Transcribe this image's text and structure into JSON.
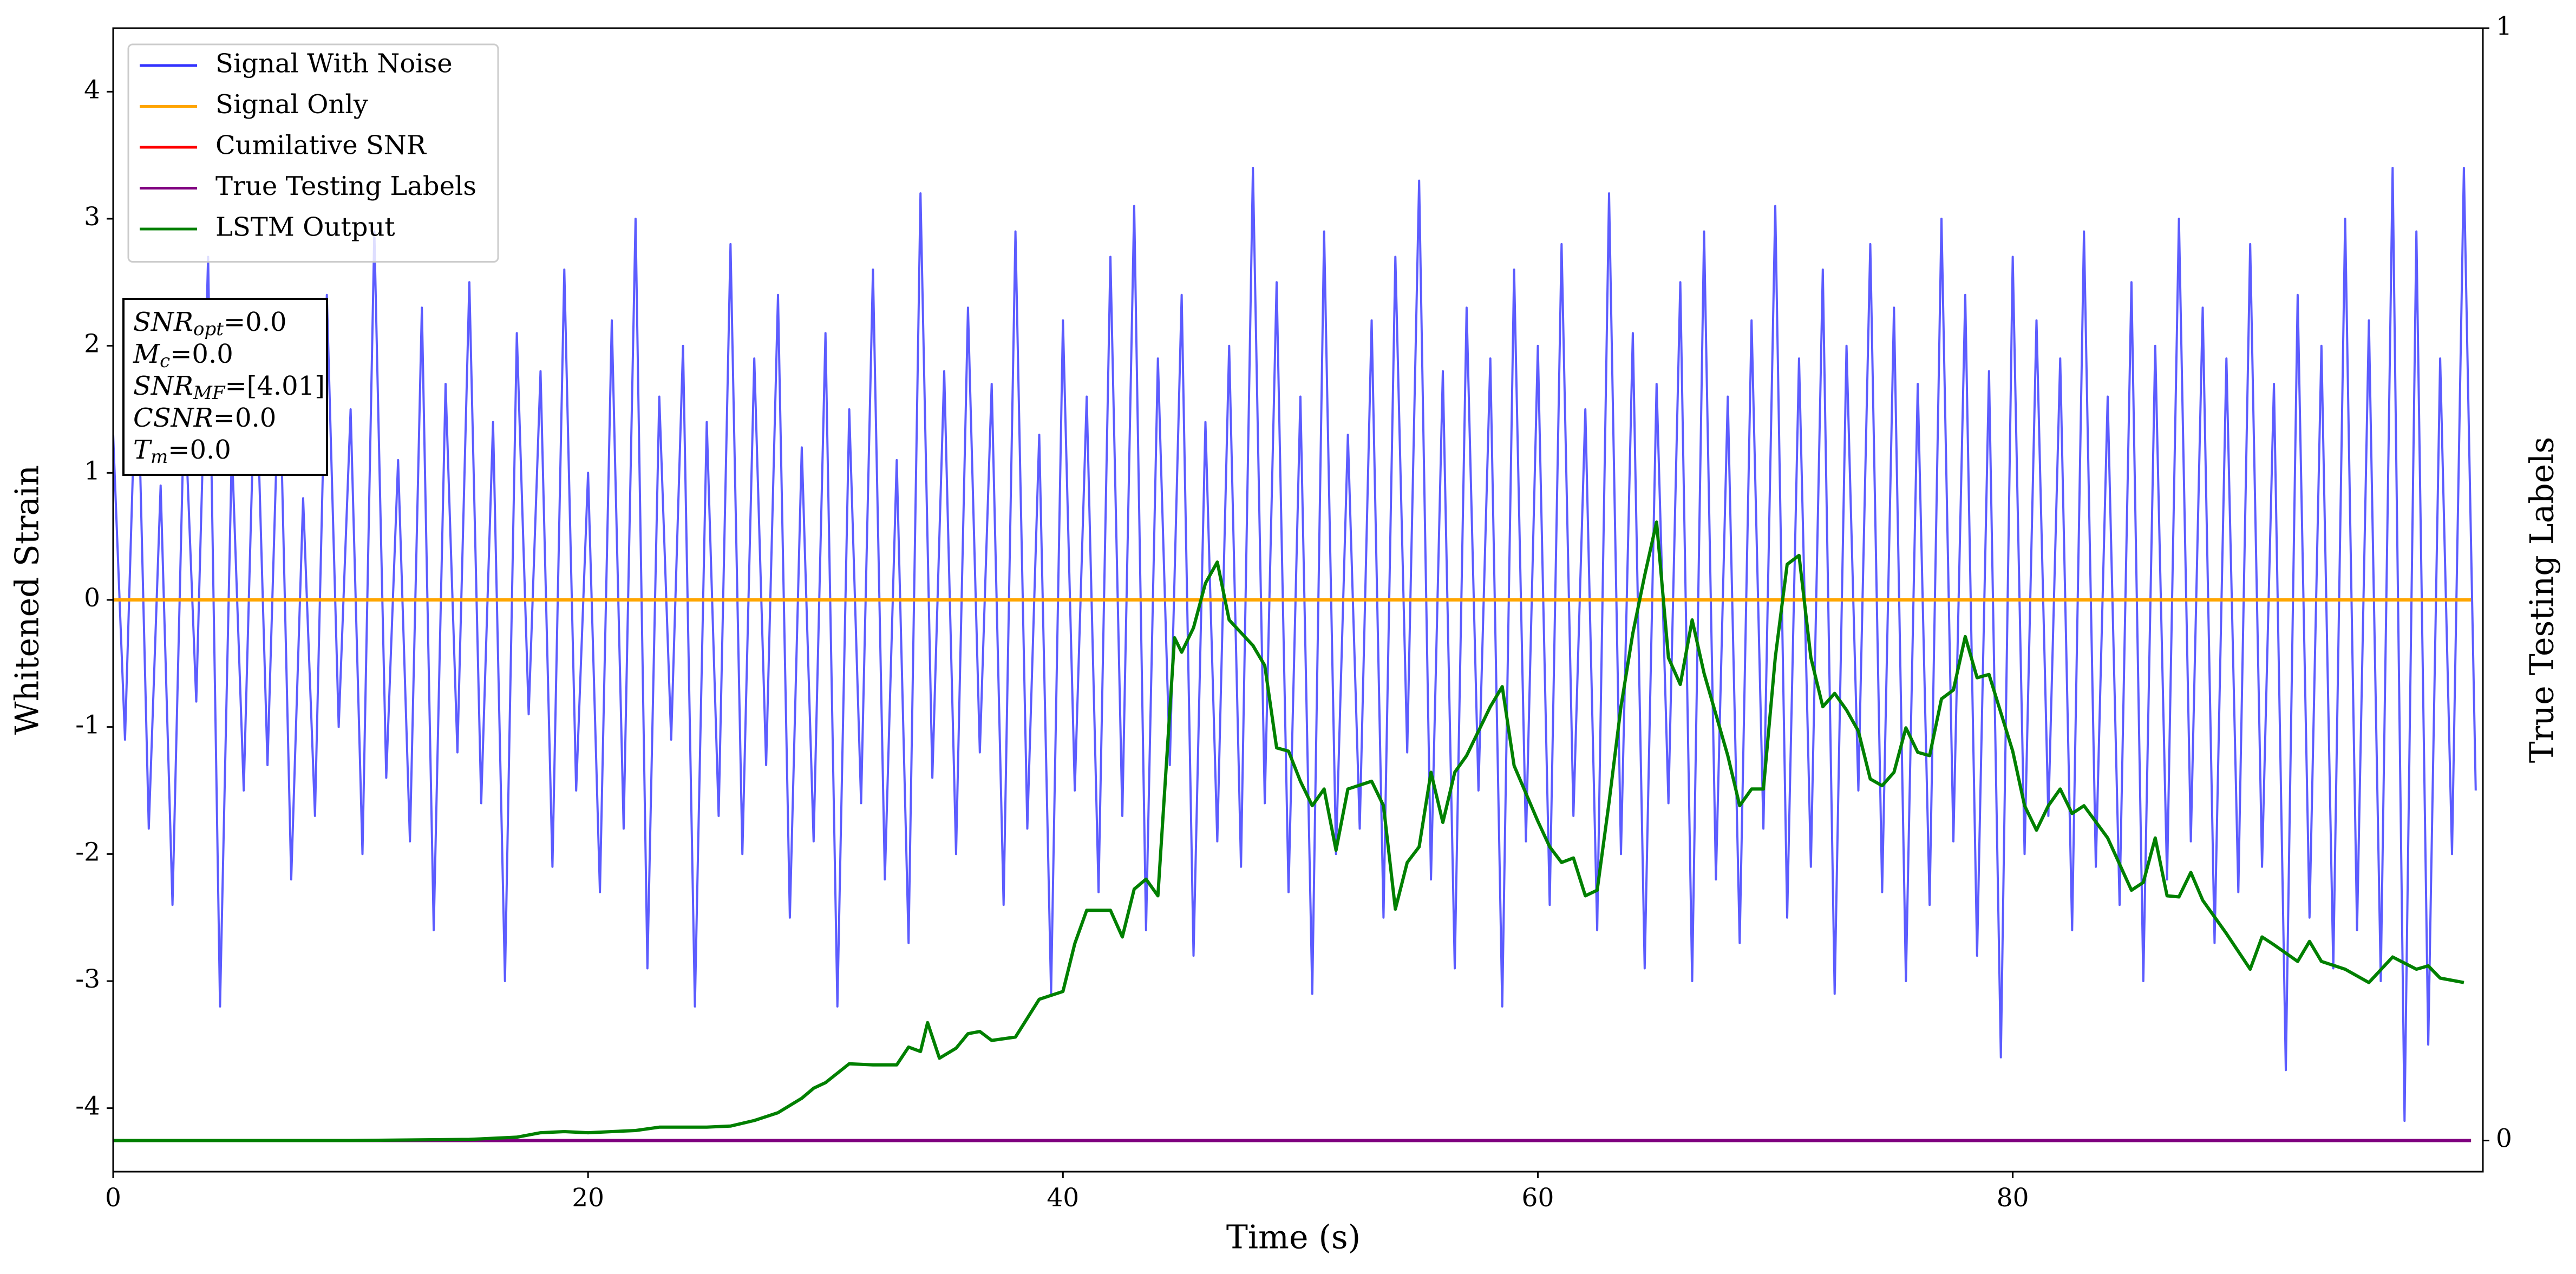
{
  "chart_data": {
    "type": "line",
    "xlabel": "Time (s)",
    "ylabel": "Whitened Strain",
    "y2label": "True Testing Labels",
    "xlim": [
      0,
      99.8
    ],
    "xticks": [
      0,
      20,
      40,
      60,
      80
    ],
    "ylim": [
      -4.5,
      4.5
    ],
    "yticks": [
      -4,
      -3,
      -2,
      -1,
      0,
      1,
      2,
      3,
      4
    ],
    "y2lim": [
      -0.028,
      1.0
    ],
    "y2ticks": [
      0,
      1
    ],
    "grid": false,
    "legend": "upper left",
    "annotations": [
      {
        "text": "SNR",
        "sub": "opt",
        "rest": "=0.0"
      },
      {
        "text": "M",
        "sub": "c",
        "rest": "=0.0"
      },
      {
        "text": "SNR",
        "sub": "MF",
        "rest": "=[4.01]"
      },
      {
        "text": "CSNR",
        "rest": "=0.0"
      },
      {
        "text": "T",
        "sub": "m",
        "rest": "=0.0"
      }
    ],
    "series": [
      {
        "name": "Signal With Noise",
        "color": "#3333ff",
        "x": [
          0,
          0.5,
          1,
          1.5,
          2,
          2.5,
          3,
          3.5,
          4,
          4.5,
          5,
          5.5,
          6,
          6.5,
          7,
          7.5,
          8,
          8.5,
          9,
          9.5,
          10,
          10.5,
          11,
          11.5,
          12,
          12.5,
          13,
          13.5,
          14,
          14.5,
          15,
          15.5,
          16,
          16.5,
          17,
          17.5,
          18,
          18.5,
          19,
          19.5,
          20,
          20.5,
          21,
          21.5,
          22,
          22.5,
          23,
          23.5,
          24,
          24.5,
          25,
          25.5,
          26,
          26.5,
          27,
          27.5,
          28,
          28.5,
          29,
          29.5,
          30,
          30.5,
          31,
          31.5,
          32,
          32.5,
          33,
          33.5,
          34,
          34.5,
          35,
          35.5,
          36,
          36.5,
          37,
          37.5,
          38,
          38.5,
          39,
          39.5,
          40,
          40.5,
          41,
          41.5,
          42,
          42.5,
          43,
          43.5,
          44,
          44.5,
          45,
          45.5,
          46,
          46.5,
          47,
          47.5,
          48,
          48.5,
          49,
          49.5,
          50,
          50.5,
          51,
          51.5,
          52,
          52.5,
          53,
          53.5,
          54,
          54.5,
          55,
          55.5,
          56,
          56.5,
          57,
          57.5,
          58,
          58.5,
          59,
          59.5,
          60,
          60.5,
          61,
          61.5,
          62,
          62.5,
          63,
          63.5,
          64,
          64.5,
          65,
          65.5,
          66,
          66.5,
          67,
          67.5,
          68,
          68.5,
          69,
          69.5,
          70,
          70.5,
          71,
          71.5,
          72,
          72.5,
          73,
          73.5,
          74,
          74.5,
          75,
          75.5,
          76,
          76.5,
          77,
          77.5,
          78,
          78.5,
          79,
          79.5,
          80,
          80.5,
          81,
          81.5,
          82,
          82.5,
          83,
          83.5,
          84,
          84.5,
          85,
          85.5,
          86,
          86.5,
          87,
          87.5,
          88,
          88.5,
          89,
          89.5,
          90,
          90.5,
          91,
          91.5,
          92,
          92.5,
          93,
          93.5,
          94,
          94.5,
          95,
          95.5,
          96,
          96.5,
          97,
          97.5,
          98,
          98.5,
          99,
          99.5
        ],
        "values": [
          1.3,
          -1.1,
          2.1,
          -1.8,
          0.9,
          -2.4,
          1.6,
          -0.8,
          2.7,
          -3.2,
          1.2,
          -1.5,
          2.0,
          -1.3,
          1.9,
          -2.2,
          0.8,
          -1.7,
          2.4,
          -1.0,
          1.5,
          -2.0,
          2.9,
          -1.4,
          1.1,
          -1.9,
          2.3,
          -2.6,
          1.7,
          -1.2,
          2.5,
          -1.6,
          1.4,
          -3.0,
          2.1,
          -0.9,
          1.8,
          -2.1,
          2.6,
          -1.5,
          1.0,
          -2.3,
          2.2,
          -1.8,
          3.0,
          -2.9,
          1.6,
          -1.1,
          2.0,
          -3.2,
          1.4,
          -1.7,
          2.8,
          -2.0,
          1.9,
          -1.3,
          2.4,
          -2.5,
          1.2,
          -1.9,
          2.1,
          -3.2,
          1.5,
          -1.6,
          2.6,
          -2.2,
          1.1,
          -2.7,
          3.2,
          -1.4,
          1.8,
          -2.0,
          2.3,
          -1.2,
          1.7,
          -2.4,
          2.9,
          -1.8,
          1.3,
          -3.1,
          2.2,
          -1.5,
          1.6,
          -2.3,
          2.7,
          -1.7,
          3.1,
          -2.6,
          1.9,
          -1.3,
          2.4,
          -2.8,
          1.4,
          -1.9,
          2.0,
          -2.1,
          3.4,
          -1.6,
          2.5,
          -2.3,
          1.6,
          -3.1,
          2.9,
          -2.0,
          1.3,
          -1.8,
          2.2,
          -2.5,
          2.7,
          -1.2,
          3.3,
          -2.2,
          1.8,
          -2.9,
          2.3,
          -1.5,
          1.9,
          -3.2,
          2.6,
          -1.9,
          2.0,
          -2.4,
          2.8,
          -1.7,
          1.5,
          -2.6,
          3.2,
          -2.0,
          2.1,
          -2.9,
          1.7,
          -1.6,
          2.5,
          -3.0,
          2.9,
          -2.2,
          1.6,
          -2.7,
          2.2,
          -1.8,
          3.1,
          -2.5,
          1.9,
          -2.1,
          2.6,
          -3.1,
          2.0,
          -1.5,
          2.8,
          -2.3,
          2.3,
          -3.0,
          1.7,
          -2.4,
          3.0,
          -1.9,
          2.4,
          -2.8,
          1.8,
          -3.6,
          2.7,
          -2.0,
          2.2,
          -1.7,
          1.9,
          -2.6,
          2.9,
          -2.1,
          1.6,
          -2.4,
          2.5,
          -3.0,
          2.0,
          -2.2,
          3.0,
          -1.9,
          2.3,
          -2.7,
          1.9,
          -2.3,
          2.8,
          -2.1,
          1.7,
          -3.7,
          2.4,
          -2.5,
          2.0,
          -2.9,
          3.0,
          -2.6,
          2.2,
          -3.0,
          3.4,
          -4.1,
          2.9,
          -3.5,
          1.9,
          -2.0,
          3.4,
          -1.5
        ]
      },
      {
        "name": "Signal Only",
        "color": "#ffa500",
        "x": [
          0,
          99.3
        ],
        "values": [
          0,
          0
        ]
      },
      {
        "name": "Cumilative SNR",
        "color": "#ff0000",
        "axis": "y2",
        "x": [
          0,
          99.3
        ],
        "values": [
          0,
          0
        ]
      },
      {
        "name": "True Testing Labels",
        "color": "#800080",
        "axis": "y2",
        "x": [
          0,
          99.3
        ],
        "values": [
          0,
          0
        ]
      },
      {
        "name": "LSTM Output",
        "color": "#008000",
        "axis": "y2",
        "x": [
          0,
          5,
          10,
          15,
          16,
          17,
          18,
          19,
          20,
          21,
          22,
          23,
          25,
          26,
          27,
          28,
          29,
          29.5,
          30,
          31,
          32,
          33,
          33.5,
          34,
          34.3,
          34.8,
          35.5,
          36,
          36.5,
          37,
          38,
          39,
          40,
          40.5,
          41,
          42,
          42.5,
          43,
          43.5,
          44,
          44.7,
          45,
          45.5,
          46,
          46.5,
          47,
          48,
          48.5,
          49,
          49.5,
          50,
          50.5,
          51,
          51.5,
          52,
          53,
          53.5,
          54,
          54.5,
          55,
          55.5,
          56,
          56.5,
          57,
          58,
          58.5,
          59,
          60,
          60.5,
          61,
          61.5,
          62,
          62.5,
          63,
          63.5,
          64,
          64.5,
          65,
          65.5,
          66,
          66.5,
          67,
          68,
          68.5,
          69,
          69.5,
          70,
          70.5,
          71,
          71.5,
          72,
          72.5,
          73,
          73.5,
          74,
          74.5,
          75,
          75.5,
          76,
          76.5,
          77,
          77.5,
          78,
          78.5,
          79,
          80,
          80.5,
          81,
          81.5,
          82,
          82.5,
          83,
          84,
          85,
          85.5,
          86,
          86.5,
          87,
          87.5,
          88,
          89,
          90,
          90.5,
          91,
          92,
          92.5,
          93,
          94,
          95,
          96,
          97,
          97.5,
          98,
          99
        ],
        "values": [
          0,
          0,
          0,
          0.001,
          0.002,
          0.003,
          0.007,
          0.008,
          0.007,
          0.008,
          0.009,
          0.012,
          0.012,
          0.013,
          0.018,
          0.025,
          0.038,
          0.047,
          0.052,
          0.069,
          0.068,
          0.068,
          0.084,
          0.08,
          0.106,
          0.074,
          0.083,
          0.096,
          0.098,
          0.09,
          0.093,
          0.127,
          0.134,
          0.177,
          0.207,
          0.207,
          0.183,
          0.226,
          0.235,
          0.22,
          0.452,
          0.439,
          0.461,
          0.501,
          0.52,
          0.468,
          0.445,
          0.427,
          0.353,
          0.35,
          0.323,
          0.301,
          0.316,
          0.261,
          0.316,
          0.323,
          0.301,
          0.208,
          0.25,
          0.264,
          0.331,
          0.286,
          0.331,
          0.346,
          0.39,
          0.408,
          0.337,
          0.287,
          0.264,
          0.25,
          0.254,
          0.22,
          0.225,
          0.304,
          0.39,
          0.456,
          0.508,
          0.556,
          0.434,
          0.41,
          0.468,
          0.42,
          0.346,
          0.301,
          0.316,
          0.316,
          0.434,
          0.518,
          0.526,
          0.434,
          0.39,
          0.402,
          0.387,
          0.368,
          0.325,
          0.319,
          0.331,
          0.371,
          0.349,
          0.346,
          0.397,
          0.405,
          0.453,
          0.416,
          0.419,
          0.35,
          0.301,
          0.279,
          0.301,
          0.316,
          0.294,
          0.301,
          0.272,
          0.225,
          0.232,
          0.272,
          0.22,
          0.219,
          0.241,
          0.216,
          0.186,
          0.154,
          0.183,
          0.176,
          0.161,
          0.179,
          0.161,
          0.154,
          0.142,
          0.165,
          0.154,
          0.157,
          0.146,
          0.142
        ]
      }
    ]
  }
}
